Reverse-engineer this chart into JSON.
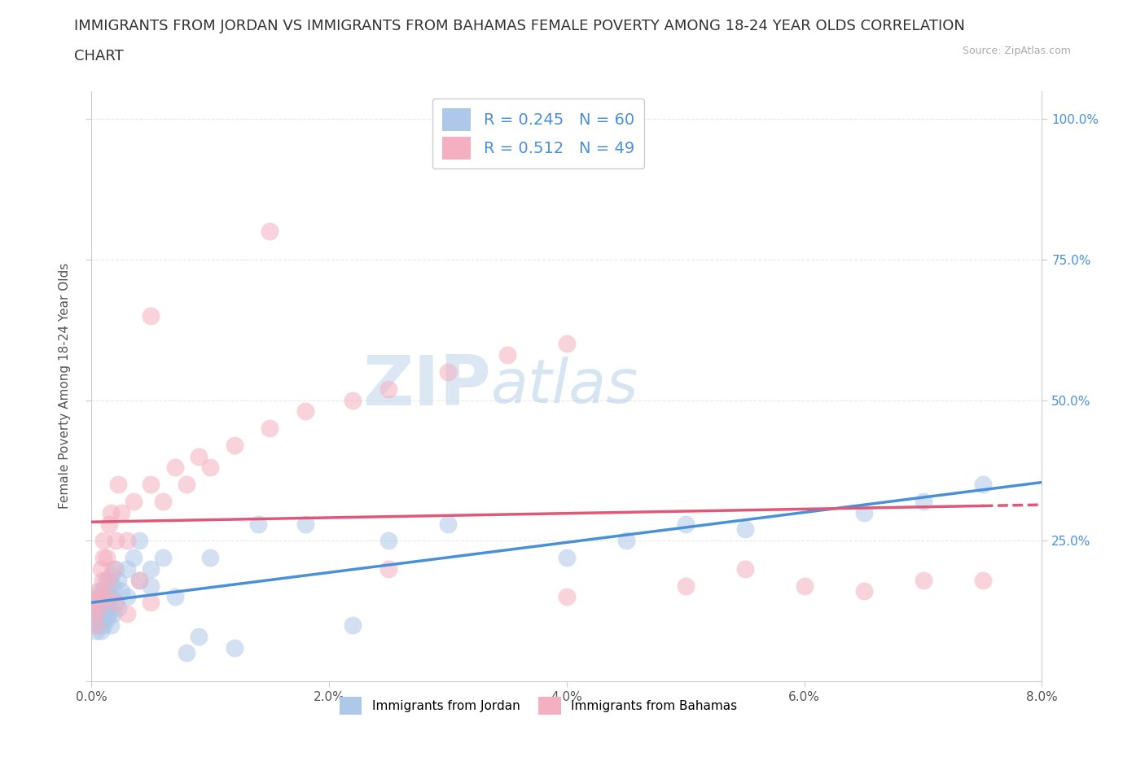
{
  "title_line1": "IMMIGRANTS FROM JORDAN VS IMMIGRANTS FROM BAHAMAS FEMALE POVERTY AMONG 18-24 YEAR OLDS CORRELATION",
  "title_line2": "CHART",
  "source_text": "Source: ZipAtlas.com",
  "ylabel": "Female Poverty Among 18-24 Year Olds",
  "legend_jordan": "Immigrants from Jordan",
  "legend_bahamas": "Immigrants from Bahamas",
  "R_jordan": 0.245,
  "N_jordan": 60,
  "R_bahamas": 0.512,
  "N_bahamas": 49,
  "jordan_color": "#adc8e8",
  "jordan_line_color": "#4a90d9",
  "bahamas_color": "#f4b0c0",
  "bahamas_line_color": "#e05878",
  "watermark_zip": "ZIP",
  "watermark_atlas": "atlas",
  "jordan_x": [
    0.0002,
    0.0003,
    0.0004,
    0.0004,
    0.0005,
    0.0005,
    0.0006,
    0.0006,
    0.0007,
    0.0007,
    0.0008,
    0.0008,
    0.0009,
    0.0009,
    0.001,
    0.001,
    0.001,
    0.0012,
    0.0012,
    0.0013,
    0.0013,
    0.0014,
    0.0014,
    0.0015,
    0.0015,
    0.0016,
    0.0016,
    0.0017,
    0.0018,
    0.0018,
    0.002,
    0.002,
    0.0022,
    0.0022,
    0.0025,
    0.003,
    0.003,
    0.0035,
    0.004,
    0.004,
    0.005,
    0.005,
    0.006,
    0.007,
    0.008,
    0.009,
    0.01,
    0.012,
    0.014,
    0.018,
    0.022,
    0.025,
    0.03,
    0.04,
    0.045,
    0.05,
    0.055,
    0.065,
    0.07,
    0.075
  ],
  "jordan_y": [
    0.1,
    0.12,
    0.09,
    0.14,
    0.11,
    0.13,
    0.15,
    0.1,
    0.12,
    0.16,
    0.09,
    0.13,
    0.11,
    0.14,
    0.1,
    0.12,
    0.16,
    0.13,
    0.18,
    0.11,
    0.14,
    0.12,
    0.16,
    0.13,
    0.18,
    0.1,
    0.15,
    0.19,
    0.12,
    0.17,
    0.14,
    0.2,
    0.13,
    0.18,
    0.16,
    0.2,
    0.15,
    0.22,
    0.18,
    0.25,
    0.2,
    0.17,
    0.22,
    0.15,
    0.05,
    0.08,
    0.22,
    0.06,
    0.28,
    0.28,
    0.1,
    0.25,
    0.28,
    0.22,
    0.25,
    0.28,
    0.27,
    0.3,
    0.32,
    0.35
  ],
  "bahamas_x": [
    0.0002,
    0.0003,
    0.0004,
    0.0005,
    0.0006,
    0.0007,
    0.0008,
    0.0009,
    0.001,
    0.001,
    0.0012,
    0.0013,
    0.0014,
    0.0015,
    0.0016,
    0.0018,
    0.002,
    0.0022,
    0.0025,
    0.003,
    0.0035,
    0.004,
    0.005,
    0.006,
    0.007,
    0.008,
    0.009,
    0.01,
    0.012,
    0.015,
    0.018,
    0.022,
    0.025,
    0.03,
    0.035,
    0.04,
    0.005,
    0.015,
    0.025,
    0.04,
    0.05,
    0.055,
    0.06,
    0.065,
    0.07,
    0.075,
    0.002,
    0.003,
    0.005
  ],
  "bahamas_y": [
    0.12,
    0.14,
    0.1,
    0.16,
    0.13,
    0.15,
    0.2,
    0.18,
    0.22,
    0.25,
    0.15,
    0.22,
    0.18,
    0.28,
    0.3,
    0.2,
    0.25,
    0.35,
    0.3,
    0.25,
    0.32,
    0.18,
    0.35,
    0.32,
    0.38,
    0.35,
    0.4,
    0.38,
    0.42,
    0.45,
    0.48,
    0.5,
    0.52,
    0.55,
    0.58,
    0.6,
    0.65,
    0.8,
    0.2,
    0.15,
    0.17,
    0.2,
    0.17,
    0.16,
    0.18,
    0.18,
    0.14,
    0.12,
    0.14
  ],
  "xmin": 0.0,
  "xmax": 0.08,
  "ymin": 0.0,
  "ymax": 1.05,
  "yticks": [
    0.0,
    0.25,
    0.5,
    0.75,
    1.0
  ],
  "ytick_labels_right": [
    "100.0%",
    "75.0%",
    "50.0%",
    "25.0%"
  ],
  "ytick_positions_right": [
    1.0,
    0.75,
    0.5,
    0.25
  ],
  "xticks": [
    0.0,
    0.02,
    0.04,
    0.06,
    0.08
  ],
  "grid_color": "#e8e8e8",
  "background_color": "#ffffff",
  "title_fontsize": 13,
  "axis_label_fontsize": 11,
  "tick_fontsize": 11
}
